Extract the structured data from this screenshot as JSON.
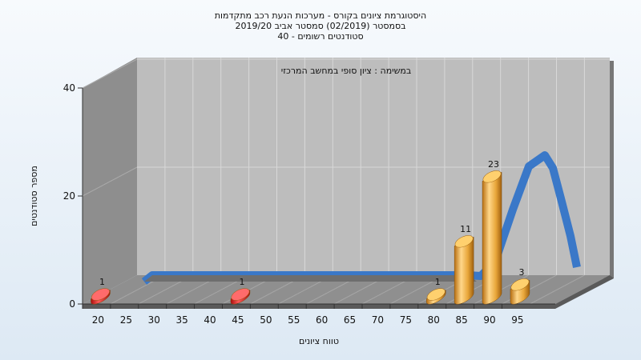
{
  "chart_data": {
    "type": "bar",
    "title_lines": [
      "היסטוגרמת ציונים בקורס - מערכות הנעת רכב מתקדמות",
      "בסמסטר  (02/2019)  סמסטר אביב 2019/20",
      "סטודנטים רשומים - 40"
    ],
    "annotation": "במשימה : ציון סופי במחשב המרכזי",
    "xlabel": "טווח ציונים",
    "ylabel": "מספר סטודנטים",
    "x_ticks": [
      "20",
      "25",
      "30",
      "35",
      "40",
      "45",
      "50",
      "55",
      "60",
      "65",
      "70",
      "75",
      "80",
      "85",
      "90",
      "95"
    ],
    "y_ticks": [
      "0",
      "20",
      "40"
    ],
    "ylim": [
      0,
      40
    ],
    "bars": [
      {
        "bin": "20",
        "value": 1,
        "label": "1",
        "color": "#e01818"
      },
      {
        "bin": "45",
        "value": 1,
        "label": "1",
        "color": "#e01818"
      },
      {
        "bin": "80",
        "value": 1,
        "label": "1",
        "color": "#e8a63a"
      },
      {
        "bin": "85",
        "value": 11,
        "label": "11",
        "color": "#e8a63a"
      },
      {
        "bin": "90",
        "value": 23,
        "label": "23",
        "color": "#e8a63a"
      },
      {
        "bin": "95",
        "value": 3,
        "label": "3",
        "color": "#e8a63a"
      }
    ],
    "curve_color": "#3a78c8",
    "wall_color": "#bdbdbd",
    "grid": true
  }
}
